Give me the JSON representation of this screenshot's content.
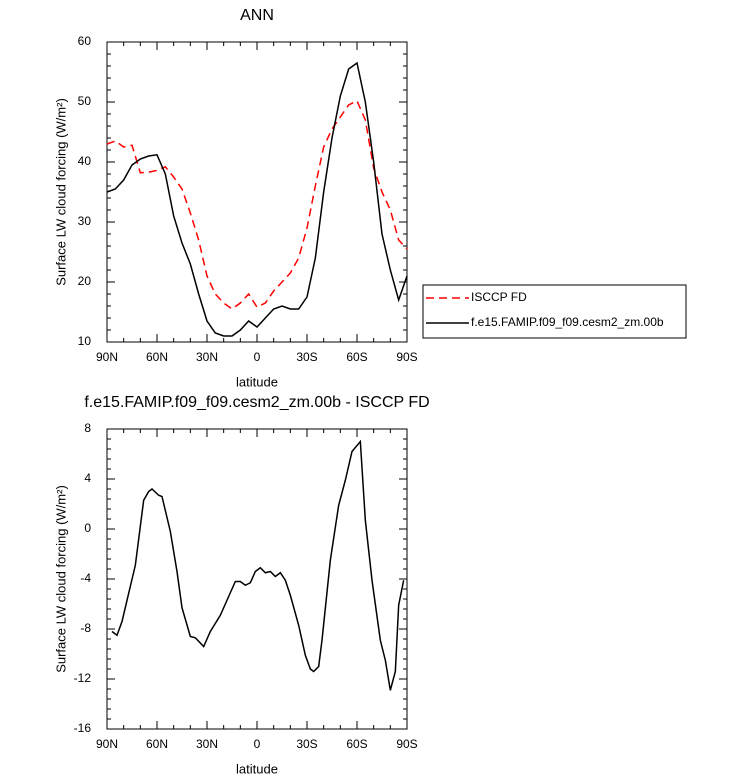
{
  "chart_data": [
    {
      "type": "line",
      "title": "ANN",
      "x_label": "latitude",
      "y_label": "Surface LW cloud forcing (W/m²)",
      "x": [
        90,
        85,
        80,
        75,
        70,
        65,
        60,
        55,
        50,
        45,
        40,
        35,
        30,
        25,
        20,
        15,
        10,
        5,
        0,
        -5,
        -10,
        -15,
        -20,
        -25,
        -30,
        -35,
        -40,
        -45,
        -50,
        -55,
        -60,
        -65,
        -70,
        -75,
        -80,
        -85,
        -90
      ],
      "series": [
        {
          "name": "ISCCP FD",
          "color": "#ff0000",
          "dashed": true,
          "values": [
            43,
            43.5,
            42.5,
            42.8,
            38.2,
            38.3,
            38.6,
            39.2,
            37.5,
            35.5,
            31.5,
            27,
            21,
            18,
            16.5,
            15.5,
            16.5,
            18,
            15.8,
            16.5,
            18.5,
            20,
            21.5,
            24,
            29,
            36,
            42.5,
            45.5,
            47.5,
            49.5,
            50.2,
            47,
            39,
            35,
            32,
            27,
            25.5
          ]
        },
        {
          "name": "f.e15.FAMIP.f09_f09.cesm2_zm.00b",
          "color": "#000000",
          "dashed": false,
          "values": [
            35,
            35.5,
            37,
            39.5,
            40.5,
            41,
            41.2,
            38,
            31,
            26.5,
            23,
            18,
            13.5,
            11.5,
            11,
            11,
            12,
            13.5,
            12.5,
            14,
            15.5,
            16,
            15.5,
            15.5,
            17.5,
            24,
            35,
            44,
            51,
            55.5,
            56.5,
            50,
            40,
            28,
            22,
            17,
            21
          ]
        }
      ],
      "xlim": [
        90,
        -90
      ],
      "xticks": [
        {
          "value": 90,
          "label": "90N"
        },
        {
          "value": 60,
          "label": "60N"
        },
        {
          "value": 30,
          "label": "30N"
        },
        0,
        {
          "value": -30,
          "label": "30S"
        },
        {
          "value": -60,
          "label": "60S"
        },
        {
          "value": -90,
          "label": "90S"
        }
      ],
      "ylim": [
        10,
        60
      ],
      "yticks": [
        10,
        20,
        30,
        40,
        50,
        60
      ],
      "legend": "right"
    },
    {
      "type": "line",
      "title": "f.e15.FAMIP.f09_f09.cesm2_zm.00b - ISCCP FD",
      "x_label": "latitude",
      "y_label": "Surface LW cloud forcing (W/m²)",
      "x": [
        87,
        84,
        81,
        73,
        68,
        65,
        63,
        59,
        57,
        52,
        48,
        45,
        40,
        37,
        32,
        28,
        22,
        18,
        13,
        10,
        7,
        4,
        1,
        -2,
        -5,
        -8,
        -11,
        -14,
        -17,
        -20,
        -25,
        -29,
        -32,
        -34,
        -37,
        -39,
        -44,
        -49,
        -53,
        -57,
        -62,
        -65,
        -69,
        -74,
        -77,
        -80,
        -83,
        -85,
        -88
      ],
      "series": [
        {
          "color": "#000000",
          "dashed": false,
          "values": [
            -8.2,
            -8.5,
            -7.4,
            -2.9,
            2.3,
            3,
            3.2,
            2.7,
            2.6,
            -0.2,
            -3.4,
            -6.3,
            -8.6,
            -8.7,
            -9.4,
            -8.2,
            -6.9,
            -5.7,
            -4.2,
            -4.2,
            -4.5,
            -4.3,
            -3.4,
            -3.1,
            -3.5,
            -3.4,
            -3.8,
            -3.5,
            -4.1,
            -5.3,
            -7.7,
            -10.1,
            -11.2,
            -11.4,
            -11,
            -8.9,
            -2.5,
            1.9,
            3.9,
            6.2,
            7,
            0.7,
            -4.1,
            -8.9,
            -10.5,
            -12.9,
            -11.4,
            -6.1,
            -4.1
          ]
        }
      ],
      "xlim": [
        90,
        -90
      ],
      "xticks": [
        {
          "value": 90,
          "label": "90N"
        },
        {
          "value": 60,
          "label": "60N"
        },
        {
          "value": 30,
          "label": "30N"
        },
        0,
        {
          "value": -30,
          "label": "30S"
        },
        {
          "value": -60,
          "label": "60S"
        },
        {
          "value": -90,
          "label": "90S"
        }
      ],
      "ylim": [
        -16,
        8
      ],
      "yticks": [
        -16,
        -12,
        -8,
        -4,
        0,
        4,
        8
      ]
    }
  ]
}
